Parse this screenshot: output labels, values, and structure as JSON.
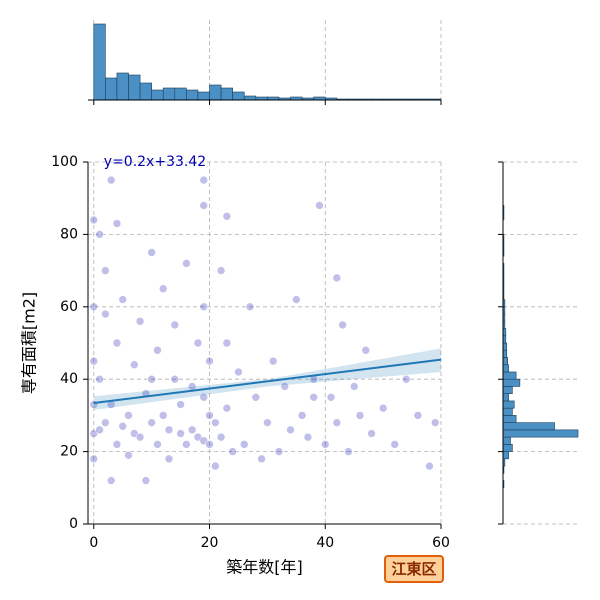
{
  "chart_data": [
    {
      "type": "scatter",
      "xlabel": "築年数[年]",
      "ylabel": "専有面積[m2]",
      "color": "#2a2ab8",
      "x": [
        0,
        0,
        0,
        0,
        0,
        0,
        1,
        1,
        1,
        2,
        2,
        3,
        3,
        4,
        4,
        5,
        5,
        6,
        6,
        7,
        7,
        8,
        8,
        9,
        9,
        10,
        10,
        11,
        11,
        12,
        12,
        13,
        13,
        14,
        14,
        15,
        15,
        16,
        16,
        17,
        17,
        18,
        18,
        19,
        19,
        19,
        19,
        20,
        20,
        20,
        21,
        21,
        22,
        22,
        23,
        23,
        24,
        25,
        26,
        27,
        28,
        29,
        30,
        31,
        32,
        33,
        34,
        35,
        36,
        37,
        38,
        39,
        40,
        41,
        42,
        43,
        44,
        45,
        46,
        47,
        48,
        50,
        52,
        54,
        56,
        58,
        59,
        2,
        4,
        19,
        3,
        10,
        23,
        38,
        42
      ],
      "y": [
        84,
        60,
        45,
        33,
        25,
        18,
        80,
        40,
        26,
        70,
        28,
        95,
        33,
        50,
        22,
        62,
        27,
        30,
        19,
        44,
        25,
        56,
        24,
        36,
        12,
        75,
        28,
        22,
        48,
        30,
        65,
        26,
        18,
        40,
        55,
        25,
        33,
        72,
        22,
        38,
        26,
        24,
        50,
        88,
        60,
        35,
        23,
        22,
        45,
        30,
        28,
        16,
        70,
        24,
        32,
        85,
        20,
        42,
        22,
        60,
        35,
        18,
        28,
        45,
        20,
        38,
        26,
        62,
        30,
        24,
        40,
        88,
        22,
        35,
        28,
        55,
        20,
        38,
        30,
        48,
        25,
        32,
        22,
        40,
        30,
        16,
        28,
        58,
        83,
        95,
        12,
        40,
        50,
        35,
        68
      ],
      "regression": {
        "slope": 0.2,
        "intercept": 33.42,
        "label": "y=0.2x+33.42",
        "color": "#1f77b4",
        "ci_x": [
          0,
          30,
          60
        ],
        "ci_lower": [
          31.5,
          38,
          42
        ],
        "ci_upper": [
          35.3,
          40,
          48.5
        ]
      },
      "xlim": [
        -1,
        60
      ],
      "xticks": [
        0,
        20,
        40,
        60
      ],
      "ylim": [
        0,
        100
      ],
      "yticks": [
        0,
        20,
        40,
        60,
        80,
        100
      ],
      "grid": true,
      "badge": "江東区"
    },
    {
      "type": "histogram",
      "orientation": "vertical",
      "color": "#4a90c4",
      "bins": [
        0,
        2,
        4,
        6,
        8,
        10,
        12,
        14,
        16,
        18,
        20,
        22,
        24,
        26,
        28,
        30,
        32,
        34,
        36,
        38,
        40,
        42,
        44,
        46,
        48,
        50,
        52,
        54,
        56,
        58,
        60
      ],
      "counts": [
        76,
        22,
        27,
        25,
        17,
        10,
        12,
        12,
        10,
        8,
        15,
        12,
        8,
        4,
        3,
        3,
        2,
        3,
        2,
        3,
        2,
        1,
        1,
        1,
        1,
        1,
        1,
        1,
        1,
        1
      ],
      "xlim": [
        -1,
        60
      ],
      "xticks": [
        0,
        20,
        40,
        60
      ],
      "ylim": [
        0,
        80
      ],
      "grid": true
    },
    {
      "type": "histogram",
      "orientation": "horizontal",
      "color": "#4a90c4",
      "bins": [
        0,
        2,
        4,
        6,
        8,
        10,
        12,
        14,
        16,
        18,
        20,
        22,
        24,
        26,
        28,
        30,
        32,
        34,
        36,
        38,
        40,
        42,
        44,
        46,
        48,
        50,
        52,
        54,
        56,
        58,
        60,
        62,
        64,
        66,
        68,
        70,
        72,
        74,
        76,
        78,
        80,
        82,
        84,
        86,
        88,
        90,
        92,
        94,
        96,
        98,
        100
      ],
      "counts": [
        0,
        0,
        0,
        0,
        0,
        1,
        0,
        1,
        2,
        6,
        10,
        8,
        80,
        55,
        14,
        10,
        12,
        6,
        10,
        18,
        14,
        6,
        5,
        4,
        4,
        3,
        3,
        2,
        2,
        2,
        2,
        1,
        1,
        1,
        1,
        1,
        0,
        1,
        1,
        1,
        0,
        0,
        1,
        1,
        0,
        0,
        0,
        0,
        0,
        0
      ],
      "xlim": [
        0,
        80
      ],
      "ylim": [
        0,
        100
      ],
      "yticks": [
        0,
        20,
        40,
        60,
        80,
        100
      ],
      "grid": true
    }
  ]
}
